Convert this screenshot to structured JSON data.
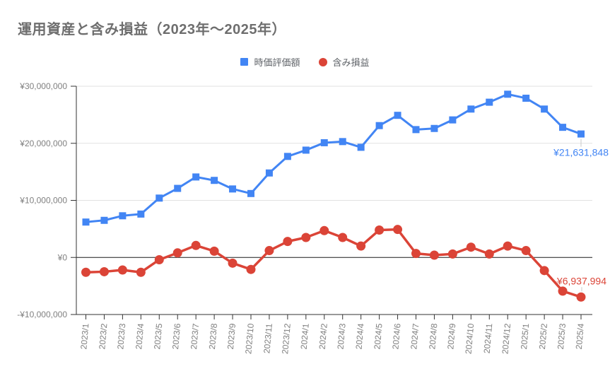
{
  "title": "運用資産と含み損益（2023年～2025年）",
  "legend": [
    {
      "label": "時価評価額",
      "marker": "square",
      "color": "#4285f4"
    },
    {
      "label": "含み損益",
      "marker": "circle",
      "color": "#db4437"
    }
  ],
  "chart_data": {
    "type": "line",
    "title": "運用資産と含み損益（2023年～2025年）",
    "legend_position": "top",
    "grid": true,
    "categories": [
      "2023/1",
      "2023/2",
      "2023/3",
      "2023/4",
      "2023/5",
      "2023/6",
      "2023/7",
      "2023/8",
      "2023/9",
      "2023/10",
      "2023/11",
      "2023/12",
      "2024/1",
      "2024/2",
      "2024/3",
      "2024/4",
      "2024/5",
      "2024/6",
      "2024/7",
      "2024/8",
      "2024/9",
      "2024/10",
      "2024/11",
      "2024/12",
      "2025/1",
      "2025/2",
      "2025/3",
      "2025/4"
    ],
    "series": [
      {
        "name": "時価評価額",
        "color": "#4285f4",
        "marker": "square",
        "values": [
          6200000,
          6500000,
          7300000,
          7600000,
          10400000,
          12100000,
          14100000,
          13500000,
          12000000,
          11200000,
          14800000,
          17700000,
          18800000,
          20100000,
          20300000,
          19300000,
          23100000,
          24900000,
          22400000,
          22600000,
          24100000,
          26000000,
          27200000,
          28600000,
          27900000,
          26000000,
          22800000,
          21631848
        ]
      },
      {
        "name": "含み損益",
        "color": "#db4437",
        "marker": "circle",
        "values": [
          -2600000,
          -2500000,
          -2200000,
          -2600000,
          -400000,
          800000,
          2100000,
          1100000,
          -1000000,
          -2100000,
          1200000,
          2800000,
          3500000,
          4700000,
          3500000,
          2000000,
          4800000,
          4900000,
          700000,
          400000,
          600000,
          1800000,
          600000,
          2000000,
          1200000,
          -2300000,
          -5900000,
          -6937994
        ]
      }
    ],
    "y_axis": {
      "range": [
        -10000000,
        30000000
      ],
      "ticks": [
        {
          "label": "¥30,000,000",
          "value": 30000000
        },
        {
          "label": "¥20,000,000",
          "value": 20000000
        },
        {
          "label": "¥10,000,000",
          "value": 10000000
        },
        {
          "label": "¥0",
          "value": 0
        },
        {
          "label": "-¥10,000,000",
          "value": -10000000
        }
      ]
    },
    "annotations": [
      {
        "series": 0,
        "index": 27,
        "label": "¥21,631,848",
        "color": "#4285f4"
      },
      {
        "series": 1,
        "index": 27,
        "label": "-¥6,937,994",
        "color": "#db4437"
      }
    ]
  }
}
